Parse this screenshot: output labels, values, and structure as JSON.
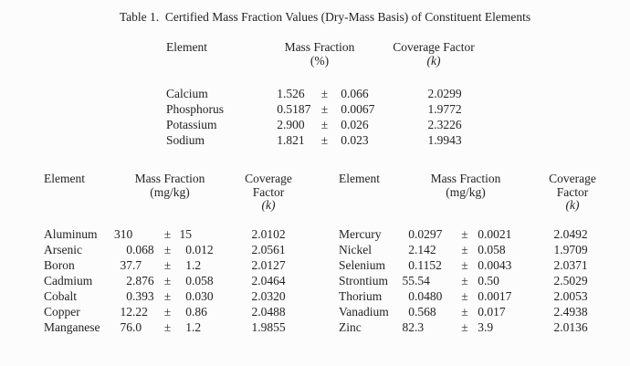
{
  "caption": "Table 1.  Certified Mass Fraction Values (Dry-Mass Basis) of Constituent Elements",
  "symbols": {
    "plus_minus": "±"
  },
  "percent_table": {
    "headers": {
      "element": "Element",
      "mass_fraction": "Mass Fraction",
      "unit": "(%)",
      "coverage_factor": "Coverage Factor",
      "k": "(k)"
    },
    "rows": [
      {
        "element": "Calcium",
        "value": "1.526",
        "uncertainty": "0.066",
        "coverage_factor": "2.0299"
      },
      {
        "element": "Phosphorus",
        "value": "0.5187",
        "uncertainty": "0.0067",
        "coverage_factor": "1.9772"
      },
      {
        "element": "Potassium",
        "value": "2.900",
        "uncertainty": "0.026",
        "coverage_factor": "2.3226"
      },
      {
        "element": "Sodium",
        "value": "1.821",
        "uncertainty": "0.023",
        "coverage_factor": "1.9943"
      }
    ]
  },
  "mgkg_left_table": {
    "headers": {
      "element": "Element",
      "mass_fraction": "Mass Fraction",
      "unit": "(mg/kg)",
      "coverage_line1": "Coverage",
      "coverage_line2": "Factor",
      "k": "(k)"
    },
    "rows": [
      {
        "element": "Aluminum",
        "value": "310",
        "uncertainty": "15",
        "coverage_factor": "2.0102"
      },
      {
        "element": "Arsenic",
        "value": "0.068",
        "uncertainty": "0.012",
        "coverage_factor": "2.0561"
      },
      {
        "element": "Boron",
        "value": "37.7",
        "uncertainty": "1.2",
        "coverage_factor": "2.0127"
      },
      {
        "element": "Cadmium",
        "value": "2.876",
        "uncertainty": "0.058",
        "coverage_factor": "2.0464"
      },
      {
        "element": "Cobalt",
        "value": "0.393",
        "uncertainty": "0.030",
        "coverage_factor": "2.0320"
      },
      {
        "element": "Copper",
        "value": "12.22",
        "uncertainty": "0.86",
        "coverage_factor": "2.0488"
      },
      {
        "element": "Manganese",
        "value": "76.0",
        "uncertainty": "1.2",
        "coverage_factor": "1.9855"
      }
    ]
  },
  "mgkg_right_table": {
    "headers": {
      "element": "Element",
      "mass_fraction": "Mass Fraction",
      "unit": "(mg/kg)",
      "coverage_line1": "Coverage",
      "coverage_line2": "Factor",
      "k": "(k)"
    },
    "rows": [
      {
        "element": "Mercury",
        "value": "0.0297",
        "uncertainty": "0.0021",
        "coverage_factor": "2.0492"
      },
      {
        "element": "Nickel",
        "value": "2.142",
        "uncertainty": "0.058",
        "coverage_factor": "1.9709"
      },
      {
        "element": "Selenium",
        "value": "0.1152",
        "uncertainty": "0.0043",
        "coverage_factor": "2.0371"
      },
      {
        "element": "Strontium",
        "value": "55.54",
        "uncertainty": "0.50",
        "coverage_factor": "2.5029"
      },
      {
        "element": "Thorium",
        "value": "0.0480",
        "uncertainty": "0.0017",
        "coverage_factor": "2.0053"
      },
      {
        "element": "Vanadium",
        "value": "0.568",
        "uncertainty": "0.017",
        "coverage_factor": "2.4938"
      },
      {
        "element": "Zinc",
        "value": "82.3",
        "uncertainty": "3.9",
        "coverage_factor": "2.0136"
      }
    ]
  }
}
